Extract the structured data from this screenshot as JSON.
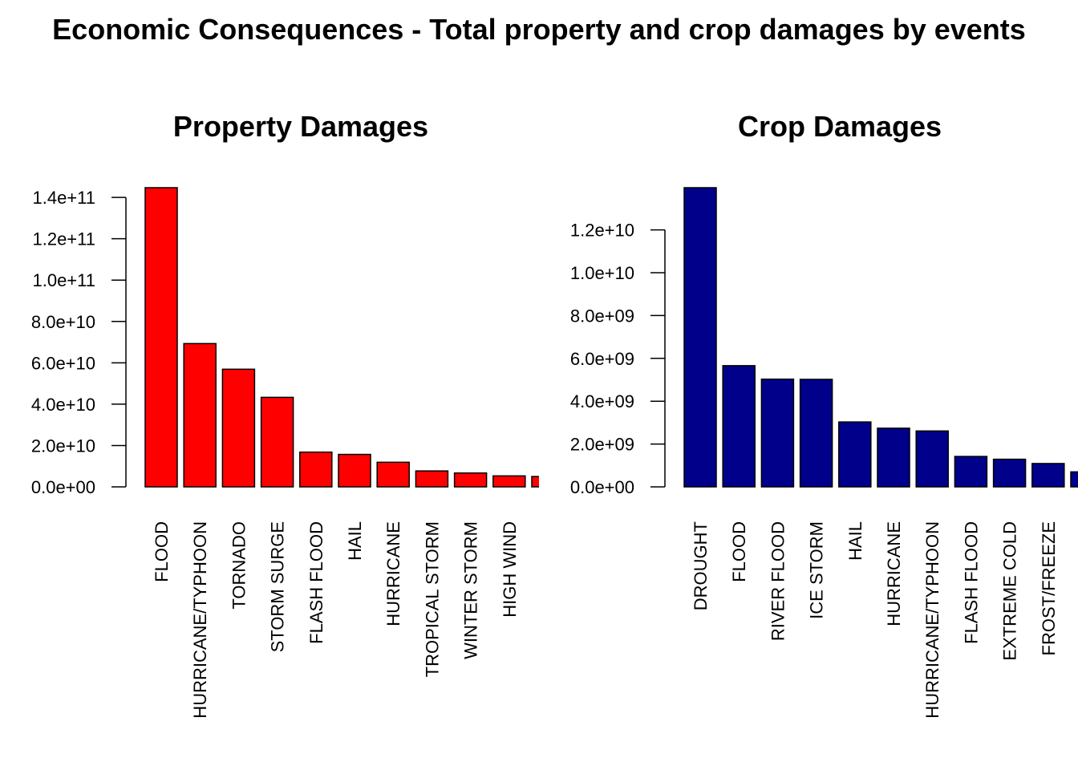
{
  "title": "Economic Consequences - Total property and crop damages by events",
  "chart_data": [
    {
      "type": "bar",
      "title": "Property Damages",
      "color": "#ff0000",
      "categories": [
        "FLOOD",
        "HURRICANE/TYPHOON",
        "TORNADO",
        "STORM SURGE",
        "FLASH FLOOD",
        "HAIL",
        "HURRICANE",
        "TROPICAL STORM",
        "WINTER STORM",
        "HIGH WIND",
        ""
      ],
      "values": [
        144700000000,
        69300000000,
        56900000000,
        43300000000,
        16800000000,
        15700000000,
        11900000000,
        7700000000,
        6700000000,
        5300000000,
        5000000000
      ],
      "yticks": [
        0,
        20000000000,
        40000000000,
        60000000000,
        80000000000,
        100000000000,
        120000000000,
        140000000000
      ],
      "ytick_labels": [
        "0.0e+00",
        "2.0e+10",
        "4.0e+10",
        "6.0e+10",
        "8.0e+10",
        "1.0e+11",
        "1.2e+11",
        "1.4e+11"
      ],
      "ylim": [
        0,
        144700000000
      ],
      "xlabel": "",
      "ylabel": ""
    },
    {
      "type": "bar",
      "title": "Crop Damages",
      "color": "#00008b",
      "categories": [
        "DROUGHT",
        "FLOOD",
        "RIVER FLOOD",
        "ICE STORM",
        "HAIL",
        "HURRICANE",
        "HURRICANE/TYPHOON",
        "FLASH FLOOD",
        "EXTREME COLD",
        "FROST/FREEZE",
        ""
      ],
      "values": [
        13970000000,
        5660000000,
        5030000000,
        5020000000,
        3030000000,
        2740000000,
        2610000000,
        1420000000,
        1290000000,
        1090000000,
        700000000
      ],
      "yticks": [
        0,
        2000000000,
        4000000000,
        6000000000,
        8000000000,
        10000000000,
        12000000000
      ],
      "ytick_labels": [
        "0.0e+00",
        "2.0e+09",
        "4.0e+09",
        "6.0e+09",
        "8.0e+09",
        "1.0e+10",
        "1.2e+10"
      ],
      "ylim": [
        0,
        13970000000
      ],
      "xlabel": "",
      "ylabel": ""
    }
  ]
}
